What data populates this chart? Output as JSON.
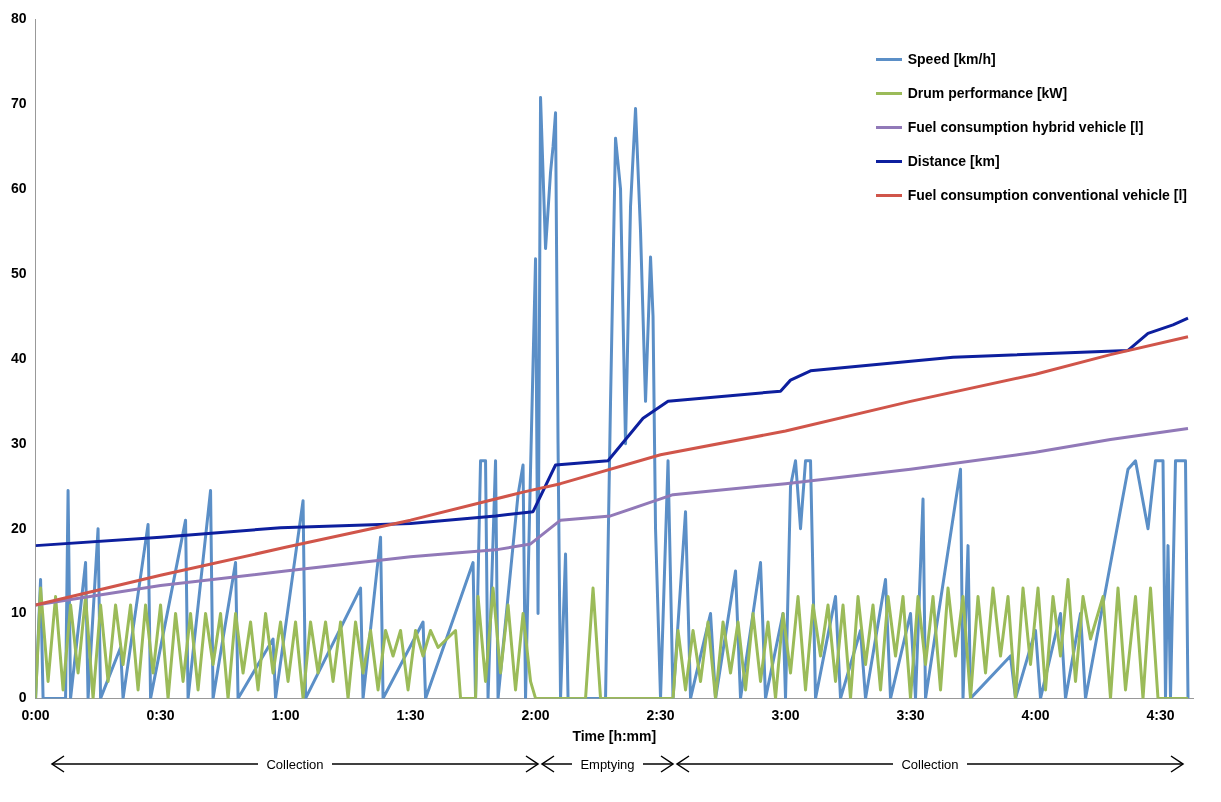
{
  "chart_data": {
    "type": "line",
    "xlabel": "Time [h:mm]",
    "xlim": [
      0,
      4.63
    ],
    "xticks": [
      {
        "value": 0,
        "label": "0:00"
      },
      {
        "value": 0.5,
        "label": "0:30"
      },
      {
        "value": 1,
        "label": "1:00"
      },
      {
        "value": 1.5,
        "label": "1:30"
      },
      {
        "value": 2,
        "label": "2:00"
      },
      {
        "value": 2.5,
        "label": "2:30"
      },
      {
        "value": 3,
        "label": "3:00"
      },
      {
        "value": 3.5,
        "label": "3:30"
      },
      {
        "value": 4,
        "label": "4:00"
      },
      {
        "value": 4.5,
        "label": "4:30"
      }
    ],
    "ylim": [
      0,
      80
    ],
    "yticks": [
      0,
      10,
      20,
      30,
      40,
      50,
      60,
      70,
      80
    ],
    "legend": "top right",
    "marker": "none",
    "line_style": "solid",
    "annotations": [
      "Collection",
      "Emptying",
      "Collection"
    ],
    "series": [
      {
        "name": "Speed [km/h]",
        "color": "#5b8fc7",
        "x": [
          0,
          0.02,
          0.03,
          0.12,
          0.13,
          0.14,
          0.2,
          0.21,
          0.25,
          0.26,
          0.34,
          0.35,
          0.45,
          0.46,
          0.6,
          0.61,
          0.7,
          0.71,
          0.8,
          0.81,
          0.95,
          0.96,
          1.07,
          1.08,
          1.3,
          1.31,
          1.38,
          1.39,
          1.55,
          1.56,
          1.75,
          1.76,
          1.78,
          1.8,
          1.81,
          1.84,
          1.85,
          1.93,
          1.95,
          1.96,
          1.98,
          2,
          2.01,
          2.02,
          2.04,
          2.06,
          2.07,
          2.08,
          2.09,
          2.1,
          2.12,
          2.13,
          2.28,
          2.3,
          2.32,
          2.34,
          2.36,
          2.38,
          2.4,
          2.42,
          2.44,
          2.46,
          2.47,
          2.48,
          2.5,
          2.53,
          2.55,
          2.6,
          2.62,
          2.7,
          2.72,
          2.8,
          2.82,
          2.9,
          2.92,
          2.99,
          3,
          3.02,
          3.04,
          3.06,
          3.08,
          3.1,
          3.12,
          3.2,
          3.22,
          3.3,
          3.32,
          3.4,
          3.42,
          3.5,
          3.52,
          3.55,
          3.56,
          3.7,
          3.71,
          3.73,
          3.74,
          3.9,
          3.92,
          4,
          4.02,
          4.1,
          4.12,
          4.18,
          4.2,
          4.37,
          4.4,
          4.45,
          4.48,
          4.51,
          4.52,
          4.53,
          4.54,
          4.56,
          4.6,
          4.61
        ],
        "values": [
          0,
          14,
          0,
          0,
          24.5,
          0,
          16,
          0,
          20,
          0,
          6,
          0,
          20.5,
          0,
          21,
          0,
          24.5,
          0,
          16,
          0,
          7,
          0,
          23.3,
          0,
          13,
          0,
          19,
          0,
          9,
          0,
          16,
          0,
          28,
          28,
          0,
          28,
          0,
          24,
          27.5,
          0,
          27,
          51.8,
          10,
          70.8,
          53,
          62,
          65,
          69,
          30,
          0,
          17,
          0,
          0,
          35,
          66,
          60,
          30,
          58,
          69.5,
          55,
          35,
          52,
          45,
          20,
          0,
          28,
          0,
          22,
          0,
          10,
          0,
          15,
          0,
          16,
          0,
          10,
          0,
          25,
          28,
          20,
          28,
          28,
          0,
          12,
          0,
          8,
          0,
          14,
          0,
          10,
          0,
          23.5,
          0,
          27,
          0,
          18,
          0,
          5,
          0,
          8,
          0,
          10,
          0,
          10,
          0,
          27,
          28,
          20,
          28,
          28,
          0,
          18,
          0,
          28,
          28,
          0
        ]
      },
      {
        "name": "Drum performance [kW]",
        "color": "#9bbb59",
        "x": [
          0,
          0.02,
          0.05,
          0.08,
          0.11,
          0.14,
          0.17,
          0.2,
          0.23,
          0.26,
          0.29,
          0.32,
          0.35,
          0.38,
          0.41,
          0.44,
          0.47,
          0.5,
          0.53,
          0.56,
          0.59,
          0.62,
          0.65,
          0.68,
          0.71,
          0.74,
          0.77,
          0.8,
          0.83,
          0.86,
          0.89,
          0.92,
          0.95,
          0.98,
          1.01,
          1.04,
          1.07,
          1.1,
          1.13,
          1.16,
          1.19,
          1.22,
          1.25,
          1.28,
          1.31,
          1.34,
          1.37,
          1.4,
          1.43,
          1.46,
          1.49,
          1.52,
          1.55,
          1.58,
          1.61,
          1.68,
          1.7,
          1.76,
          1.77,
          1.8,
          1.83,
          1.86,
          1.89,
          1.92,
          1.95,
          1.98,
          2,
          2.2,
          2.23,
          2.26,
          2.55,
          2.57,
          2.6,
          2.63,
          2.66,
          2.69,
          2.72,
          2.75,
          2.78,
          2.81,
          2.84,
          2.87,
          2.9,
          2.93,
          2.96,
          2.99,
          3.02,
          3.05,
          3.08,
          3.11,
          3.14,
          3.17,
          3.2,
          3.23,
          3.26,
          3.29,
          3.32,
          3.35,
          3.38,
          3.41,
          3.44,
          3.47,
          3.5,
          3.53,
          3.56,
          3.59,
          3.62,
          3.65,
          3.68,
          3.71,
          3.74,
          3.77,
          3.8,
          3.83,
          3.86,
          3.89,
          3.92,
          3.95,
          3.98,
          4.01,
          4.04,
          4.07,
          4.1,
          4.13,
          4.16,
          4.19,
          4.22,
          4.27,
          4.3,
          4.33,
          4.36,
          4.4,
          4.43,
          4.46,
          4.49,
          4.5,
          4.61
        ],
        "values": [
          0,
          13,
          2,
          12,
          1,
          11,
          3,
          12,
          0,
          11,
          2,
          11,
          4,
          11,
          1,
          11,
          3,
          11,
          0,
          10,
          2,
          10,
          1,
          10,
          4,
          10,
          0,
          10,
          3,
          9,
          1,
          10,
          3,
          9,
          2,
          9,
          0,
          9,
          3,
          9,
          2,
          9,
          0,
          9,
          3,
          8,
          1,
          8,
          5,
          8,
          1,
          8,
          5,
          8,
          6,
          8,
          0,
          0,
          12,
          2,
          13,
          3,
          11,
          1,
          10,
          2,
          0,
          0,
          13,
          0,
          0,
          8,
          1,
          8,
          2,
          9,
          0,
          9,
          3,
          9,
          1,
          10,
          2,
          9,
          0,
          10,
          3,
          12,
          1,
          11,
          5,
          11,
          2,
          11,
          0,
          12,
          4,
          11,
          1,
          12,
          5,
          12,
          0,
          12,
          4,
          12,
          1,
          13,
          5,
          12,
          0,
          12,
          3,
          13,
          5,
          12,
          0,
          13,
          4,
          13,
          1,
          12,
          5,
          14,
          2,
          12,
          7,
          12,
          0,
          13,
          1,
          12,
          0,
          13,
          0,
          0,
          0
        ]
      },
      {
        "name": "Fuel consumption hybrid vehicle [l]",
        "color": "#9179b8",
        "x": [
          0,
          0.5,
          1,
          1.5,
          1.84,
          1.98,
          2.1,
          2.3,
          2.45,
          2.55,
          3,
          3.5,
          4,
          4.3,
          4.61
        ],
        "values": [
          11,
          13.3,
          15,
          16.7,
          17.5,
          18.2,
          21,
          21.5,
          23,
          24,
          25.3,
          27,
          29,
          30.5,
          31.8
        ]
      },
      {
        "name": "Distance [km]",
        "color": "#0d1f9e",
        "x": [
          0,
          0.5,
          0.98,
          1.5,
          1.84,
          1.99,
          2.08,
          2.29,
          2.43,
          2.53,
          2.98,
          3.02,
          3.1,
          3.67,
          4.37,
          4.45,
          4.55,
          4.61
        ],
        "values": [
          18,
          19,
          20.1,
          20.6,
          21.5,
          22,
          27.5,
          28,
          33,
          35,
          36.2,
          37.5,
          38.6,
          40.2,
          41,
          43,
          44,
          44.8
        ]
      },
      {
        "name": "Fuel consumption conventional vehicle [l]",
        "color": "#d0554a",
        "x": [
          0,
          0.5,
          1,
          1.5,
          1.95,
          2.1,
          2.5,
          3,
          3.5,
          4,
          4.3,
          4.61
        ],
        "values": [
          11,
          14.5,
          17.8,
          21,
          24.3,
          25.3,
          28.7,
          31.5,
          35,
          38.2,
          40.5,
          42.6
        ]
      }
    ]
  }
}
